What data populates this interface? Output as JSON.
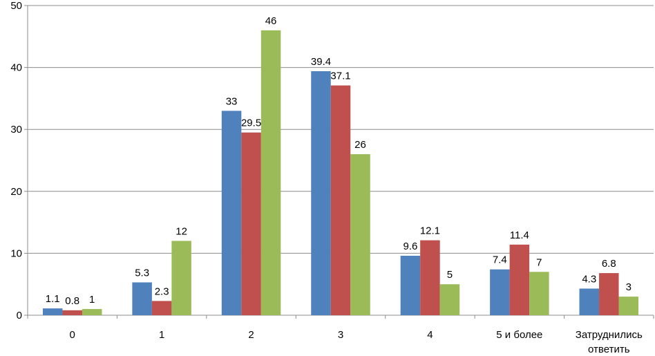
{
  "chart_data": {
    "type": "bar",
    "categories": [
      "0",
      "1",
      "2",
      "3",
      "4",
      "5 и более",
      "Затруднились ответить"
    ],
    "category_label_lines": [
      [
        "0"
      ],
      [
        "1"
      ],
      [
        "2"
      ],
      [
        "3"
      ],
      [
        "4"
      ],
      [
        "5 и более"
      ],
      [
        "Затруднились",
        "ответить"
      ]
    ],
    "series": [
      {
        "color": "#4F81BD",
        "values": [
          1.1,
          5.3,
          33,
          39.4,
          9.6,
          7.4,
          4.3
        ],
        "labels": [
          "1.1",
          "5.3",
          "33",
          "39.4",
          "9.6",
          "7.4",
          "4.3"
        ]
      },
      {
        "color": "#C0504D",
        "values": [
          0.8,
          2.3,
          29.5,
          37.1,
          12.1,
          11.4,
          6.8
        ],
        "labels": [
          "0.8",
          "2.3",
          "29.5",
          "37.1",
          "12.1",
          "11.4",
          "6.8"
        ]
      },
      {
        "color": "#9BBB59",
        "values": [
          1,
          12,
          46,
          26,
          5,
          7,
          3
        ],
        "labels": [
          "1",
          "12",
          "46",
          "26",
          "5",
          "7",
          "3"
        ]
      }
    ],
    "ylim": [
      0,
      50
    ],
    "yticks": [
      "0",
      "10",
      "20",
      "30",
      "40",
      "50"
    ],
    "grid": true,
    "legend": "none",
    "title": "",
    "xlabel": "",
    "ylabel": ""
  }
}
